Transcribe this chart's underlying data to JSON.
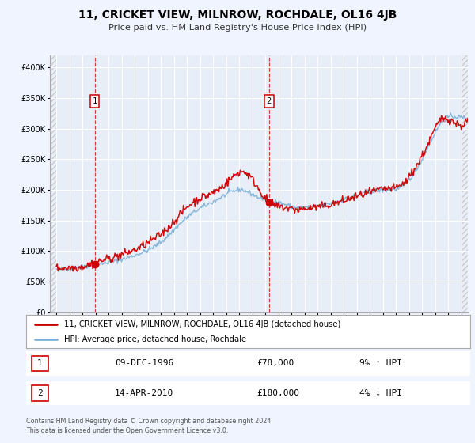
{
  "title": "11, CRICKET VIEW, MILNROW, ROCHDALE, OL16 4JB",
  "subtitle": "Price paid vs. HM Land Registry's House Price Index (HPI)",
  "legend_line1": "11, CRICKET VIEW, MILNROW, ROCHDALE, OL16 4JB (detached house)",
  "legend_line2": "HPI: Average price, detached house, Rochdale",
  "annotation1_date": "09-DEC-1996",
  "annotation1_price": "£78,000",
  "annotation1_hpi": "9% ↑ HPI",
  "annotation1_year": 1996.94,
  "annotation1_value": 78000,
  "annotation2_date": "14-APR-2010",
  "annotation2_price": "£180,000",
  "annotation2_hpi": "4% ↓ HPI",
  "annotation2_year": 2010.28,
  "annotation2_value": 180000,
  "price_line_color": "#cc0000",
  "hpi_line_color": "#7bafd4",
  "background_color": "#f0f4ff",
  "plot_bg_color": "#e8eef8",
  "grid_color": "#ffffff",
  "ylim": [
    0,
    420000
  ],
  "yticks": [
    0,
    50000,
    100000,
    150000,
    200000,
    250000,
    300000,
    350000,
    400000
  ],
  "xlim": [
    1993.5,
    2025.5
  ],
  "footer1": "Contains HM Land Registry data © Crown copyright and database right 2024.",
  "footer2": "This data is licensed under the Open Government Licence v3.0."
}
